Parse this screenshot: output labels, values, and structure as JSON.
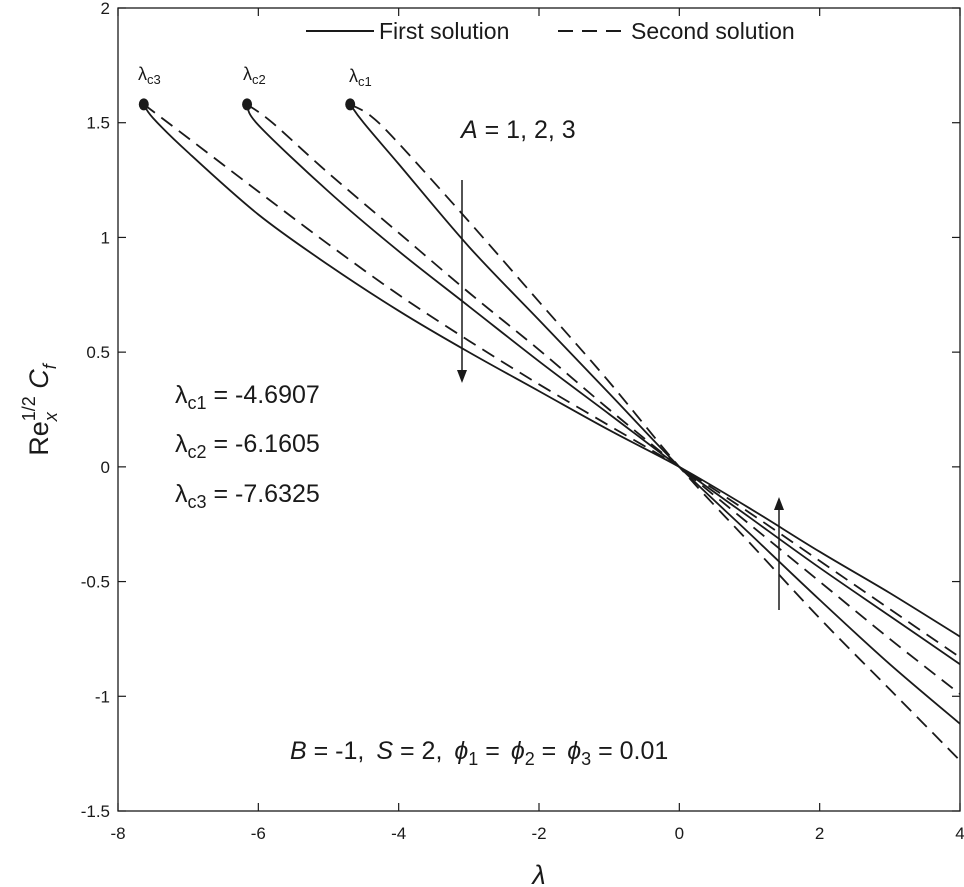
{
  "chart_data": {
    "type": "line",
    "xlabel": "λ",
    "ylabel": {
      "base": "Re",
      "sub": "x",
      "sup": "1/2",
      "tail": " C",
      "tail_sub": "f"
    },
    "xlim": [
      -8,
      4
    ],
    "ylim": [
      -1.5,
      2
    ],
    "xticks": [
      -8,
      -6,
      -4,
      -2,
      0,
      2,
      4
    ],
    "yticks": [
      -1.5,
      -1,
      -0.5,
      0,
      0.5,
      1,
      1.5,
      2
    ],
    "xtick_labels": [
      "-8",
      "-6",
      "-4",
      "-2",
      "0",
      "2",
      "4"
    ],
    "ytick_labels": [
      "-1.5",
      "-1",
      "-0.5",
      "0",
      "0.5",
      "1",
      "1.5",
      "2"
    ],
    "legend": {
      "position": "top",
      "first": "First solution",
      "second": "Second solution"
    },
    "parameter_label": {
      "var": "A",
      "values": " = 1, 2, 3"
    },
    "fixed_params": {
      "B": "B",
      "B_val": " = -1,",
      "S": "S",
      "S_val": " = 2,",
      "phi1": "ϕ",
      "phi1_sub": "1",
      "phi1_val": " = ",
      "phi2": "ϕ",
      "phi2_sub": "2",
      "phi2_val": " = ",
      "phi3": "ϕ",
      "phi3_sub": "3",
      "phi3_val": " = 0.01"
    },
    "critical_labels": [
      {
        "sym": "λ",
        "sub": "c1",
        "x": -4.6907,
        "y": 1.58
      },
      {
        "sym": "λ",
        "sub": "c2",
        "x": -6.1605,
        "y": 1.58
      },
      {
        "sym": "λ",
        "sub": "c3",
        "x": -7.6325,
        "y": 1.58
      }
    ],
    "critical_values": [
      {
        "sym": "λ",
        "sub": "c1",
        "val": " = -4.6907"
      },
      {
        "sym": "λ",
        "sub": "c2",
        "val": " = -6.1605"
      },
      {
        "sym": "λ",
        "sub": "c3",
        "val": " = -7.6325"
      }
    ],
    "series": [
      {
        "name": "First solution A=1",
        "style": "solid",
        "points": [
          [
            -4.6907,
            1.58
          ],
          [
            -4.5,
            1.5
          ],
          [
            -4,
            1.32
          ],
          [
            -3,
            0.96
          ],
          [
            -2,
            0.64
          ],
          [
            -1,
            0.32
          ],
          [
            0,
            0
          ],
          [
            1,
            -0.29
          ],
          [
            2,
            -0.58
          ],
          [
            3,
            -0.86
          ],
          [
            4,
            -1.12
          ]
        ]
      },
      {
        "name": "Second solution A=1",
        "style": "dashed",
        "points": [
          [
            -4.6907,
            1.58
          ],
          [
            -4.4,
            1.53
          ],
          [
            -4,
            1.41
          ],
          [
            -3,
            1.07
          ],
          [
            -2,
            0.72
          ],
          [
            -1,
            0.37
          ],
          [
            0,
            0
          ],
          [
            1,
            -0.33
          ],
          [
            2,
            -0.66
          ],
          [
            3,
            -0.97
          ],
          [
            4,
            -1.28
          ]
        ]
      },
      {
        "name": "First solution A=2",
        "style": "solid",
        "points": [
          [
            -6.1605,
            1.58
          ],
          [
            -6,
            1.49
          ],
          [
            -5,
            1.2
          ],
          [
            -4,
            0.94
          ],
          [
            -3,
            0.7
          ],
          [
            -2,
            0.46
          ],
          [
            -1,
            0.23
          ],
          [
            0,
            0
          ],
          [
            1,
            -0.22
          ],
          [
            2,
            -0.44
          ],
          [
            3,
            -0.65
          ],
          [
            4,
            -0.86
          ]
        ]
      },
      {
        "name": "Second solution A=2",
        "style": "dashed",
        "points": [
          [
            -6.1605,
            1.58
          ],
          [
            -5.8,
            1.5
          ],
          [
            -5,
            1.28
          ],
          [
            -4,
            1.02
          ],
          [
            -3,
            0.76
          ],
          [
            -2,
            0.51
          ],
          [
            -1,
            0.25
          ],
          [
            0,
            0
          ],
          [
            1,
            -0.25
          ],
          [
            2,
            -0.5
          ],
          [
            3,
            -0.75
          ],
          [
            4,
            -0.99
          ]
        ]
      },
      {
        "name": "First solution A=3",
        "style": "solid",
        "points": [
          [
            -7.6325,
            1.58
          ],
          [
            -7.5,
            1.52
          ],
          [
            -7,
            1.37
          ],
          [
            -6,
            1.1
          ],
          [
            -5,
            0.88
          ],
          [
            -4,
            0.68
          ],
          [
            -3,
            0.5
          ],
          [
            -2,
            0.33
          ],
          [
            -1,
            0.16
          ],
          [
            0,
            0
          ],
          [
            1,
            -0.18
          ],
          [
            2,
            -0.37
          ],
          [
            3,
            -0.55
          ],
          [
            4,
            -0.74
          ]
        ]
      },
      {
        "name": "Second solution A=3",
        "style": "dashed",
        "points": [
          [
            -7.6325,
            1.58
          ],
          [
            -7.2,
            1.48
          ],
          [
            -6,
            1.2
          ],
          [
            -5,
            0.97
          ],
          [
            -4,
            0.75
          ],
          [
            -3,
            0.55
          ],
          [
            -2,
            0.36
          ],
          [
            -1,
            0.18
          ],
          [
            0,
            0
          ],
          [
            1,
            -0.2
          ],
          [
            2,
            -0.41
          ],
          [
            3,
            -0.62
          ],
          [
            4,
            -0.83
          ]
        ]
      }
    ]
  }
}
